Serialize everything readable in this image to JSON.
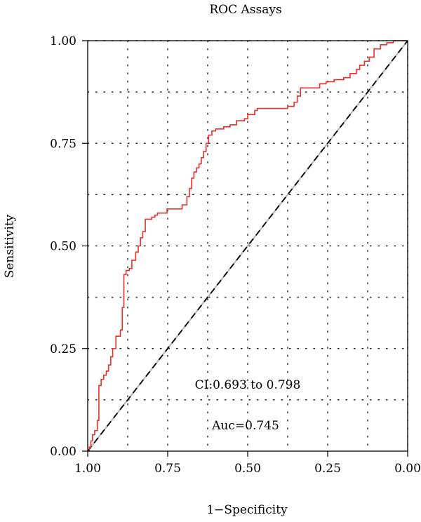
{
  "chart_data": {
    "type": "line",
    "title": "ROC Assays",
    "xlabel": "1−Specificity",
    "ylabel": "Sensitivity",
    "xlim": [
      1.0,
      0.0
    ],
    "ylim": [
      0.0,
      1.0
    ],
    "x_reversed": true,
    "x_ticks": [
      "1.00",
      "0.75",
      "0.50",
      "0.25",
      "0.00"
    ],
    "x_tick_values": [
      1.0,
      0.75,
      0.5,
      0.25,
      0.0
    ],
    "y_ticks": [
      "0.00",
      "0.25",
      "0.50",
      "0.75",
      "1.00"
    ],
    "y_tick_values": [
      0.0,
      0.25,
      0.5,
      0.75,
      1.0
    ],
    "grid": true,
    "grid_style": "dotted",
    "annotations": [
      "CI:0.693 to 0.798",
      "Auc=0.745"
    ],
    "series": [
      {
        "color": "#e8312a",
        "style": "step",
        "points": [
          [
            1.0,
            0.0
          ],
          [
            0.995,
            0.01
          ],
          [
            0.99,
            0.025
          ],
          [
            0.985,
            0.04
          ],
          [
            0.978,
            0.05
          ],
          [
            0.97,
            0.075
          ],
          [
            0.965,
            0.16
          ],
          [
            0.958,
            0.175
          ],
          [
            0.95,
            0.185
          ],
          [
            0.942,
            0.195
          ],
          [
            0.935,
            0.21
          ],
          [
            0.928,
            0.23
          ],
          [
            0.922,
            0.25
          ],
          [
            0.912,
            0.28
          ],
          [
            0.898,
            0.295
          ],
          [
            0.892,
            0.35
          ],
          [
            0.887,
            0.43
          ],
          [
            0.88,
            0.44
          ],
          [
            0.87,
            0.445
          ],
          [
            0.862,
            0.465
          ],
          [
            0.85,
            0.485
          ],
          [
            0.842,
            0.5
          ],
          [
            0.835,
            0.52
          ],
          [
            0.828,
            0.535
          ],
          [
            0.82,
            0.565
          ],
          [
            0.8,
            0.57
          ],
          [
            0.79,
            0.575
          ],
          [
            0.782,
            0.58
          ],
          [
            0.752,
            0.59
          ],
          [
            0.705,
            0.6
          ],
          [
            0.69,
            0.62
          ],
          [
            0.682,
            0.64
          ],
          [
            0.675,
            0.665
          ],
          [
            0.668,
            0.68
          ],
          [
            0.66,
            0.69
          ],
          [
            0.652,
            0.7
          ],
          [
            0.645,
            0.715
          ],
          [
            0.638,
            0.73
          ],
          [
            0.63,
            0.75
          ],
          [
            0.622,
            0.77
          ],
          [
            0.612,
            0.78
          ],
          [
            0.6,
            0.785
          ],
          [
            0.575,
            0.79
          ],
          [
            0.555,
            0.795
          ],
          [
            0.535,
            0.805
          ],
          [
            0.51,
            0.81
          ],
          [
            0.5,
            0.82
          ],
          [
            0.478,
            0.83
          ],
          [
            0.47,
            0.835
          ],
          [
            0.375,
            0.84
          ],
          [
            0.355,
            0.85
          ],
          [
            0.345,
            0.865
          ],
          [
            0.335,
            0.885
          ],
          [
            0.275,
            0.895
          ],
          [
            0.255,
            0.9
          ],
          [
            0.23,
            0.905
          ],
          [
            0.2,
            0.91
          ],
          [
            0.18,
            0.92
          ],
          [
            0.16,
            0.93
          ],
          [
            0.15,
            0.94
          ],
          [
            0.135,
            0.95
          ],
          [
            0.12,
            0.96
          ],
          [
            0.105,
            0.98
          ],
          [
            0.085,
            0.99
          ],
          [
            0.065,
            0.995
          ],
          [
            0.045,
            1.0
          ],
          [
            0.0,
            1.0
          ]
        ]
      },
      {
        "style": "dashed",
        "color": "#000000",
        "points": [
          [
            1.0,
            0.0
          ],
          [
            0.0,
            1.0
          ]
        ]
      }
    ]
  }
}
